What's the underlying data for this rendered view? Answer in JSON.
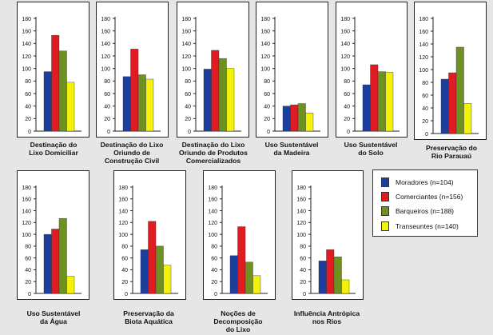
{
  "colors": {
    "Moradores": "#1c3f9e",
    "Comerciantes": "#e01b22",
    "Barqueiros": "#6e9124",
    "Transeuntes": "#f4f20a"
  },
  "legend": {
    "items": [
      {
        "label": "Moradores (n=104)",
        "color": "#1c3f9e"
      },
      {
        "label": "Comerciantes (n=156)",
        "color": "#e01b22"
      },
      {
        "label": "Barqueiros (n=188)",
        "color": "#6e9124"
      },
      {
        "label": "Transeuntes (n=140)",
        "color": "#f4f20a"
      }
    ]
  },
  "chart_data": [
    {
      "type": "bar",
      "title": "Destinação do\nLixo Domiciliar",
      "ylim": [
        0,
        180
      ],
      "yticks": [
        0,
        20,
        40,
        60,
        80,
        100,
        120,
        140,
        160,
        180
      ],
      "series": [
        {
          "name": "Moradores (n=104)",
          "values": [
            95
          ]
        },
        {
          "name": "Comerciantes (n=156)",
          "values": [
            153
          ]
        },
        {
          "name": "Barqueiros (n=188)",
          "values": [
            128
          ]
        },
        {
          "name": "Transeuntes (n=140)",
          "values": [
            78
          ]
        }
      ]
    },
    {
      "type": "bar",
      "title": "Destinação do Lixo\nOriundo de\nConstrução Civil",
      "ylim": [
        0,
        180
      ],
      "yticks": [
        0,
        20,
        40,
        60,
        80,
        100,
        120,
        140,
        160,
        180
      ],
      "series": [
        {
          "name": "Moradores (n=104)",
          "values": [
            87
          ]
        },
        {
          "name": "Comerciantes (n=156)",
          "values": [
            131
          ]
        },
        {
          "name": "Barqueiros (n=188)",
          "values": [
            90
          ]
        },
        {
          "name": "Transeuntes (n=140)",
          "values": [
            83
          ]
        }
      ]
    },
    {
      "type": "bar",
      "title": "Destinação do Lixo\nOriundo de Produtos\nComercializados",
      "ylim": [
        0,
        180
      ],
      "yticks": [
        0,
        20,
        40,
        60,
        80,
        100,
        120,
        140,
        160,
        180
      ],
      "series": [
        {
          "name": "Moradores (n=104)",
          "values": [
            99
          ]
        },
        {
          "name": "Comerciantes (n=156)",
          "values": [
            129
          ]
        },
        {
          "name": "Barqueiros (n=188)",
          "values": [
            116
          ]
        },
        {
          "name": "Transeuntes (n=140)",
          "values": [
            100
          ]
        }
      ]
    },
    {
      "type": "bar",
      "title": "Uso Sustentável\nda Madeira",
      "ylim": [
        0,
        180
      ],
      "yticks": [
        0,
        20,
        40,
        60,
        80,
        100,
        120,
        140,
        160,
        180
      ],
      "series": [
        {
          "name": "Moradores (n=104)",
          "values": [
            40
          ]
        },
        {
          "name": "Comerciantes (n=156)",
          "values": [
            42
          ]
        },
        {
          "name": "Barqueiros (n=188)",
          "values": [
            44
          ]
        },
        {
          "name": "Transeuntes (n=140)",
          "values": [
            29
          ]
        }
      ]
    },
    {
      "type": "bar",
      "title": "Uso Sustentável\ndo Solo",
      "ylim": [
        0,
        180
      ],
      "yticks": [
        0,
        20,
        40,
        60,
        80,
        100,
        120,
        140,
        160,
        180
      ],
      "series": [
        {
          "name": "Moradores (n=104)",
          "values": [
            74
          ]
        },
        {
          "name": "Comerciantes (n=156)",
          "values": [
            106
          ]
        },
        {
          "name": "Barqueiros (n=188)",
          "values": [
            95
          ]
        },
        {
          "name": "Transeuntes (n=140)",
          "values": [
            94
          ]
        }
      ]
    },
    {
      "type": "bar",
      "title": "Preservação do\nRio Parauaú",
      "ylim": [
        0,
        180
      ],
      "yticks": [
        0,
        20,
        40,
        60,
        80,
        100,
        120,
        140,
        160,
        180
      ],
      "series": [
        {
          "name": "Moradores (n=104)",
          "values": [
            85
          ]
        },
        {
          "name": "Comerciantes (n=156)",
          "values": [
            95
          ]
        },
        {
          "name": "Barqueiros (n=188)",
          "values": [
            135
          ]
        },
        {
          "name": "Transeuntes (n=140)",
          "values": [
            47
          ]
        }
      ]
    },
    {
      "type": "bar",
      "title": "Uso Sustentável\nda Água",
      "ylim": [
        0,
        180
      ],
      "yticks": [
        0,
        20,
        40,
        60,
        80,
        100,
        120,
        140,
        160,
        180
      ],
      "series": [
        {
          "name": "Moradores (n=104)",
          "values": [
            100
          ]
        },
        {
          "name": "Comerciantes (n=156)",
          "values": [
            109
          ]
        },
        {
          "name": "Barqueiros (n=188)",
          "values": [
            127
          ]
        },
        {
          "name": "Transeuntes (n=140)",
          "values": [
            29
          ]
        }
      ]
    },
    {
      "type": "bar",
      "title": "Preservação da\nBiota Aquática",
      "ylim": [
        0,
        180
      ],
      "yticks": [
        0,
        20,
        40,
        60,
        80,
        100,
        120,
        140,
        160,
        180
      ],
      "series": [
        {
          "name": "Moradores (n=104)",
          "values": [
            74
          ]
        },
        {
          "name": "Comerciantes (n=156)",
          "values": [
            122
          ]
        },
        {
          "name": "Barqueiros (n=188)",
          "values": [
            80
          ]
        },
        {
          "name": "Transeuntes (n=140)",
          "values": [
            48
          ]
        }
      ]
    },
    {
      "type": "bar",
      "title": "Noções de\nDecomposição\ndo Lixo",
      "ylim": [
        0,
        180
      ],
      "yticks": [
        0,
        20,
        40,
        60,
        80,
        100,
        120,
        140,
        160,
        180
      ],
      "series": [
        {
          "name": "Moradores (n=104)",
          "values": [
            64
          ]
        },
        {
          "name": "Comerciantes (n=156)",
          "values": [
            113
          ]
        },
        {
          "name": "Barqueiros (n=188)",
          "values": [
            53
          ]
        },
        {
          "name": "Transeuntes (n=140)",
          "values": [
            30
          ]
        }
      ]
    },
    {
      "type": "bar",
      "title": "Influência Antrópica\nnos Rios",
      "ylim": [
        0,
        180
      ],
      "yticks": [
        0,
        20,
        40,
        60,
        80,
        100,
        120,
        140,
        160,
        180
      ],
      "series": [
        {
          "name": "Moradores (n=104)",
          "values": [
            55
          ]
        },
        {
          "name": "Comerciantes (n=156)",
          "values": [
            74
          ]
        },
        {
          "name": "Barqueiros (n=188)",
          "values": [
            62
          ]
        },
        {
          "name": "Transeuntes (n=140)",
          "values": [
            23
          ]
        }
      ]
    }
  ]
}
